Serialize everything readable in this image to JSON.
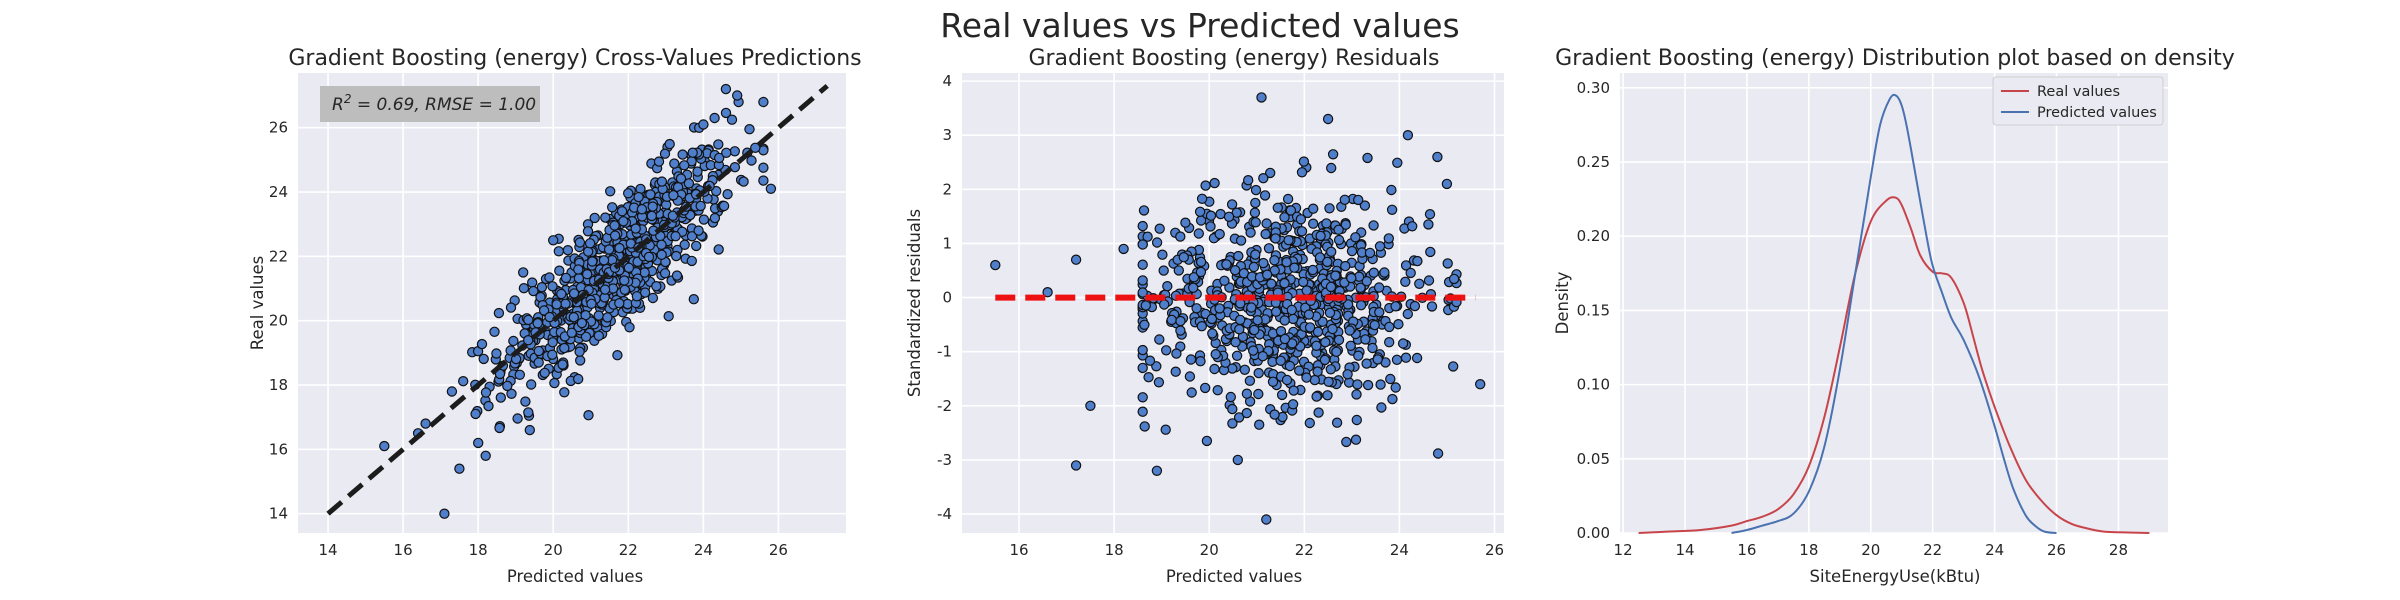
{
  "figure": {
    "suptitle": "Real values vs Predicted values"
  },
  "colors": {
    "points": "#4f7ecb",
    "point_edge": "#111111",
    "ideal_line": "#1c1c1c",
    "zero_line": "#ee1111",
    "real_kde": "#c8444b",
    "pred_kde": "#4a72b0",
    "axes_bg": "#eaeaf2"
  },
  "chart_data": [
    {
      "type": "scatter",
      "title": "Gradient Boosting (energy) Cross-Values Predictions",
      "xlabel": "Predicted values",
      "ylabel": "Real values",
      "xlim": [
        13.2,
        27.8
      ],
      "ylim": [
        13.4,
        27.7
      ],
      "xticks": [
        "14",
        "16",
        "18",
        "20",
        "22",
        "24",
        "26"
      ],
      "yticks": [
        "14",
        "16",
        "18",
        "20",
        "22",
        "24",
        "26"
      ],
      "annotation": {
        "r2_label": "R",
        "r2_exp": "2",
        "rest": " = 0.69, RMSE = 1.00"
      },
      "reference_line": {
        "x": [
          14.0,
          27.3
        ],
        "y": [
          14.0,
          27.3
        ],
        "style": "dashed"
      },
      "cloud": {
        "count": 800,
        "x_mean": 21.7,
        "x_sd": 1.5,
        "slope": 0.98,
        "noise_sd": 1.0
      },
      "points": [
        {
          "x": 15.5,
          "y": 16.1
        },
        {
          "x": 16.4,
          "y": 16.5
        },
        {
          "x": 16.6,
          "y": 16.8
        },
        {
          "x": 17.1,
          "y": 14.0
        },
        {
          "x": 17.5,
          "y": 15.4
        },
        {
          "x": 17.3,
          "y": 17.8
        },
        {
          "x": 18.0,
          "y": 16.2
        },
        {
          "x": 18.2,
          "y": 15.8
        },
        {
          "x": 24.6,
          "y": 27.2
        },
        {
          "x": 24.9,
          "y": 27.0
        },
        {
          "x": 25.8,
          "y": 24.1
        },
        {
          "x": 24.0,
          "y": 26.1
        },
        {
          "x": 24.3,
          "y": 26.3
        },
        {
          "x": 19.2,
          "y": 21.5
        },
        {
          "x": 20.0,
          "y": 22.5
        }
      ]
    },
    {
      "type": "scatter",
      "title": "Gradient Boosting (energy) Residuals",
      "xlabel": "Predicted values",
      "ylabel": "Standardized residuals",
      "xlim": [
        14.8,
        26.2
      ],
      "ylim": [
        -4.35,
        4.15
      ],
      "xticks": [
        "16",
        "18",
        "20",
        "22",
        "24",
        "26"
      ],
      "yticks": [
        "-4",
        "-3",
        "-2",
        "-1",
        "0",
        "1",
        "2",
        "3",
        "4"
      ],
      "zero_line": {
        "x": [
          15.5,
          25.6
        ],
        "y": [
          0,
          0
        ],
        "style": "dashed"
      },
      "cloud": {
        "count": 800,
        "x_mean": 21.7,
        "x_sd": 1.5,
        "y_sd": 1.0
      },
      "points": [
        {
          "x": 15.5,
          "y": 0.6
        },
        {
          "x": 16.6,
          "y": 0.1
        },
        {
          "x": 17.2,
          "y": 0.7
        },
        {
          "x": 17.2,
          "y": -3.1
        },
        {
          "x": 17.5,
          "y": -2.0
        },
        {
          "x": 21.1,
          "y": 3.7
        },
        {
          "x": 21.2,
          "y": -4.1
        },
        {
          "x": 25.7,
          "y": -1.6
        },
        {
          "x": 25.0,
          "y": 2.1
        },
        {
          "x": 24.8,
          "y": 2.6
        },
        {
          "x": 22.5,
          "y": 3.3
        },
        {
          "x": 18.9,
          "y": -3.2
        },
        {
          "x": 20.6,
          "y": -3.0
        },
        {
          "x": 18.2,
          "y": 0.9
        },
        {
          "x": 18.6,
          "y": -1.3
        }
      ]
    },
    {
      "type": "line",
      "title": "Gradient Boosting (energy) Distribution plot based on density",
      "xlabel": "SiteEnergyUse(kBtu)",
      "ylabel": "Density",
      "xlim": [
        11.9,
        29.6
      ],
      "ylim": [
        0,
        0.31
      ],
      "xticks": [
        "12",
        "14",
        "16",
        "18",
        "20",
        "22",
        "24",
        "26",
        "28"
      ],
      "yticks": [
        "0.00",
        "0.05",
        "0.10",
        "0.15",
        "0.20",
        "0.25",
        "0.30"
      ],
      "legend": {
        "position": "top-right",
        "entries": [
          "Real values",
          "Predicted values"
        ]
      },
      "series": [
        {
          "name": "Real values",
          "x": [
            12.5,
            13.5,
            14.5,
            15.5,
            16.0,
            16.5,
            17.0,
            17.5,
            18.0,
            18.5,
            19.0,
            19.5,
            20.0,
            20.5,
            20.8,
            21.0,
            21.3,
            21.6,
            22.0,
            22.3,
            22.6,
            23.0,
            23.3,
            23.6,
            24.0,
            24.5,
            25.0,
            25.5,
            26.0,
            26.5,
            27.0,
            27.5,
            28.0,
            29.0
          ],
          "y": [
            0.0,
            0.001,
            0.002,
            0.005,
            0.008,
            0.011,
            0.016,
            0.026,
            0.045,
            0.078,
            0.125,
            0.175,
            0.21,
            0.224,
            0.226,
            0.221,
            0.205,
            0.187,
            0.176,
            0.175,
            0.172,
            0.155,
            0.133,
            0.11,
            0.085,
            0.058,
            0.036,
            0.022,
            0.012,
            0.006,
            0.003,
            0.001,
            0.0005,
            0.0
          ]
        },
        {
          "name": "Predicted values",
          "x": [
            15.5,
            16.0,
            16.5,
            17.0,
            17.5,
            18.0,
            18.5,
            19.0,
            19.5,
            20.0,
            20.3,
            20.6,
            20.8,
            21.0,
            21.2,
            21.5,
            21.8,
            22.0,
            22.3,
            22.6,
            23.0,
            23.5,
            24.0,
            24.3,
            24.6,
            25.0,
            25.3,
            25.6,
            26.0
          ],
          "y": [
            0.0,
            0.002,
            0.005,
            0.008,
            0.013,
            0.028,
            0.058,
            0.11,
            0.175,
            0.24,
            0.275,
            0.292,
            0.295,
            0.288,
            0.27,
            0.235,
            0.2,
            0.18,
            0.162,
            0.145,
            0.13,
            0.105,
            0.072,
            0.05,
            0.03,
            0.012,
            0.005,
            0.001,
            0.0
          ]
        }
      ]
    }
  ]
}
